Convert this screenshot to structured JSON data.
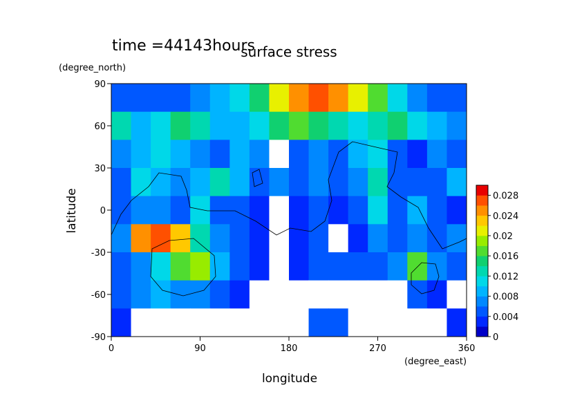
{
  "chart_data": {
    "type": "contour",
    "time_label": "time =44143hours",
    "title": "surface stress",
    "y_unit": "(degree_north)",
    "y_label": "latitude",
    "x_label": "longitude",
    "x_unit": "(degree_east)",
    "xlim": [
      0,
      360
    ],
    "xticks": [
      0,
      90,
      180,
      270,
      360
    ],
    "ylim": [
      -90,
      90
    ],
    "yticks": [
      -90,
      -60,
      -30,
      0,
      30,
      60,
      90
    ],
    "x": [
      10,
      30,
      50,
      70,
      90,
      110,
      130,
      150,
      170,
      190,
      210,
      230,
      250,
      270,
      290,
      310,
      330,
      350
    ],
    "y": [
      80,
      60,
      40,
      20,
      0,
      -20,
      -40,
      -60,
      -80
    ],
    "z": [
      [
        0.004,
        0.004,
        0.005,
        0.005,
        0.006,
        0.008,
        0.01,
        0.014,
        0.02,
        0.024,
        0.026,
        0.024,
        0.02,
        0.016,
        0.01,
        0.006,
        0.004,
        0.004
      ],
      [
        0.012,
        0.008,
        0.01,
        0.014,
        0.012,
        0.008,
        0.008,
        0.01,
        0.014,
        0.016,
        0.014,
        0.012,
        0.01,
        0.012,
        0.014,
        0.01,
        0.008,
        0.006
      ],
      [
        0.006,
        0.008,
        0.01,
        0.008,
        0.006,
        0.004,
        0.008,
        0.006,
        0,
        0.004,
        0.006,
        0.004,
        0.008,
        0.01,
        0.004,
        0.002,
        0.006,
        0.004
      ],
      [
        0.004,
        0.01,
        0.008,
        0.006,
        0.008,
        0.012,
        0.008,
        0.004,
        0.006,
        0.004,
        0.006,
        0.004,
        0.006,
        0.012,
        0.004,
        0.004,
        0.004,
        0.008
      ],
      [
        0.004,
        0.006,
        0.006,
        0.004,
        0.01,
        0.004,
        0.004,
        0.002,
        0,
        0.002,
        0.004,
        0.002,
        0.004,
        0.01,
        0.004,
        0.008,
        0.004,
        0.002
      ],
      [
        0.006,
        0.024,
        0.026,
        0.022,
        0.012,
        0.006,
        0.004,
        0.002,
        0,
        0.002,
        0.004,
        0,
        0.002,
        0.006,
        0.004,
        0.006,
        0.004,
        0.006
      ],
      [
        0.004,
        0.006,
        0.01,
        0.016,
        0.018,
        0.008,
        0.004,
        0.002,
        0,
        0.002,
        0.004,
        0.004,
        0.004,
        0.004,
        0.006,
        0.016,
        0.006,
        0.004
      ],
      [
        0.004,
        0.006,
        0.008,
        0.006,
        0.006,
        0.004,
        0.002,
        0,
        0,
        0,
        0,
        0,
        0,
        0,
        0,
        0.004,
        0.002,
        0
      ],
      [
        0.002,
        0,
        0,
        0,
        0,
        0,
        0,
        0,
        0,
        0,
        0.004,
        0.004,
        0,
        0,
        0,
        0,
        0,
        0.002
      ]
    ],
    "clim": [
      0,
      0.03
    ],
    "cticks": [
      0,
      0.004,
      0.008,
      0.012,
      0.016,
      0.02,
      0.024,
      0.028
    ],
    "empty_color": "#ffffff",
    "colors": [
      "#0000c8",
      "#0028ff",
      "#0058ff",
      "#0088ff",
      "#00b4ff",
      "#00d8e8",
      "#00d8b0",
      "#10d070",
      "#50dc30",
      "#98ec00",
      "#e8f000",
      "#ffc800",
      "#ff9000",
      "#ff5000",
      "#e80000"
    ]
  }
}
